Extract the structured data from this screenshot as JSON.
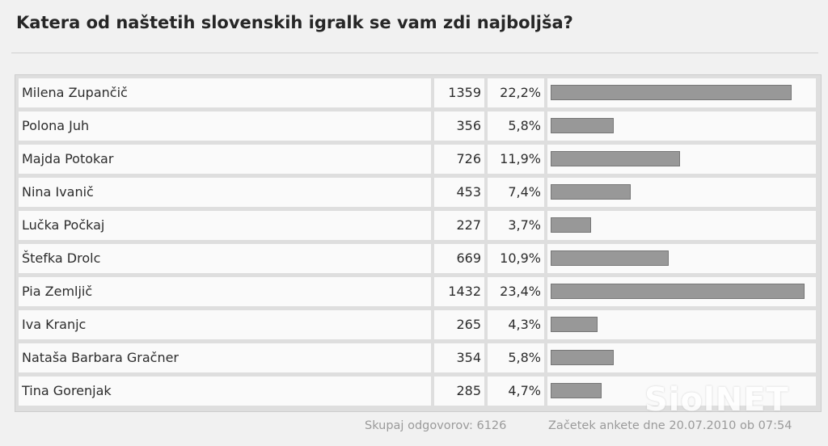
{
  "poll": {
    "question": "Katera od naštetih slovenskih igralk se vam zdi najboljša?",
    "options": [
      {
        "name": "Milena Zupančič",
        "votes": "1359",
        "percent": "22,2%",
        "share": 0.222
      },
      {
        "name": "Polona Juh",
        "votes": "356",
        "percent": "5,8%",
        "share": 0.058
      },
      {
        "name": "Majda Potokar",
        "votes": "726",
        "percent": "11,9%",
        "share": 0.119
      },
      {
        "name": "Nina Ivanič",
        "votes": "453",
        "percent": "7,4%",
        "share": 0.074
      },
      {
        "name": "Lučka Počkaj",
        "votes": "227",
        "percent": "3,7%",
        "share": 0.037
      },
      {
        "name": "Štefka Drolc",
        "votes": "669",
        "percent": "10,9%",
        "share": 0.109
      },
      {
        "name": "Pia Zemljič",
        "votes": "1432",
        "percent": "23,4%",
        "share": 0.234
      },
      {
        "name": "Iva Kranjc",
        "votes": "265",
        "percent": "4,3%",
        "share": 0.043
      },
      {
        "name": "Nataša Barbara Gračner",
        "votes": "354",
        "percent": "5,8%",
        "share": 0.058
      },
      {
        "name": "Tina Gorenjak",
        "votes": "285",
        "percent": "4,7%",
        "share": 0.047
      }
    ],
    "total_label": "Skupaj odgovorov: 6126",
    "start_label": "Začetek ankete dne 20.07.2010 ob 07:54"
  },
  "watermark": "SiolNET",
  "colors": {
    "bar_fill": "#989898",
    "bar_border": "#767676",
    "row_bg": "#fafafa",
    "page_bg": "#f1f1f1"
  }
}
